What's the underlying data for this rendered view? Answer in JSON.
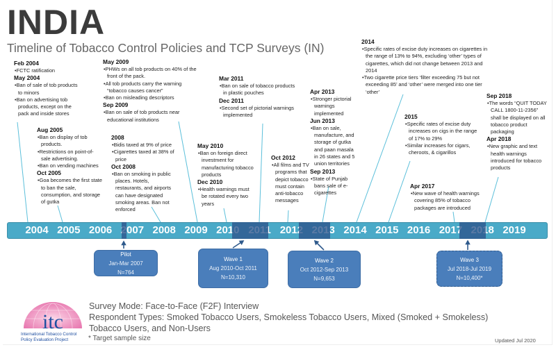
{
  "header": {
    "title": "INDIA",
    "subtitle": "Timeline of Tobacco Control Policies and TCP Surveys (IN)"
  },
  "events": [
    {
      "groups": [
        {
          "date": "Feb 2004",
          "items": [
            "FCTC ratification"
          ]
        },
        {
          "date": "May 2004",
          "items": [
            "Ban of sale of tob products to minors",
            "Ban on advertising tob products, except on the pack and inside stores"
          ]
        }
      ]
    },
    {
      "groups": [
        {
          "date": "Aug 2005",
          "items": [
            "Ban on display of tob products.",
            "Restrictions on point-of-sale advertising.",
            "Ban on vending machines"
          ]
        },
        {
          "date": "Oct 2005",
          "items": [
            "Goa becomes the first state to ban the sale, consumption, and storage of gutka"
          ]
        }
      ]
    },
    {
      "groups": [
        {
          "date": "May 2009",
          "items": [
            "PHWs on all tob products on 40% of the front of the pack.",
            "All tob products carry the warning “tobacco causes cancer”",
            "Ban on misleading descriptors"
          ]
        },
        {
          "date": "Sep 2009",
          "items": [
            "Ban on sale of tob products near educational institutions"
          ]
        }
      ]
    },
    {
      "groups": [
        {
          "date": "2008",
          "items": [
            "Bidis taxed at 9% of price",
            "Cigarettes taxed at 38% of price"
          ]
        },
        {
          "date": "Oct 2008",
          "items": [
            "Ban on smoking in public places. Hotels, restaurants, and airports can have designated smoking areas. Ban not enforced"
          ]
        }
      ]
    },
    {
      "groups": [
        {
          "date": "Mar 2011",
          "items": [
            "Ban on sale of tobacco products  in plastic pouches"
          ]
        },
        {
          "date": "Dec 2011",
          "items": [
            "Second set of pictorial warnings implemented"
          ]
        }
      ]
    },
    {
      "groups": [
        {
          "date": "May 2010",
          "items": [
            "Ban on foreign direct investment for manufacturing tobacco products"
          ]
        },
        {
          "date": "Dec 2010",
          "items": [
            "Health warnings must be rotated every two years"
          ]
        }
      ]
    },
    {
      "groups": [
        {
          "date": "Oct 2012",
          "items": [
            "All films and TV programs that depict tobacco must contain anti-tobacco messages"
          ]
        }
      ]
    },
    {
      "groups": [
        {
          "date": "Apr 2013",
          "items": [
            "Stronger pictorial warnings implemented"
          ]
        },
        {
          "date": "Jun 2013",
          "items": [
            "Ban on sale, manufacture, and storage of gutka and paan masala in 26 states and 5 union territories"
          ]
        },
        {
          "date": "Sep 2013",
          "items": [
            "State of Punjab bans sale of e-cigarettes"
          ]
        }
      ]
    },
    {
      "groups": [
        {
          "date": "2014",
          "items": [
            "Specific rates of excise duty increases on cigarettes in the range of 13% to 94%, excluding ‘other’ types of cigarettes, which did not change between 2013 and 2014",
            "Two cigarette price tiers ‘filter exceeding 75 but not exceeding 85’ and ‘other’ were merged into one tier ‘other’"
          ]
        }
      ]
    },
    {
      "groups": [
        {
          "date": "2015",
          "items": [
            "Specific rates of excise duty increases on cigs in the range of 17% to 29%",
            "Similar increases for cigars, cheroots, & cigarillos"
          ]
        }
      ]
    },
    {
      "groups": [
        {
          "date": "Apr 2017",
          "items": [
            "New wave of health warnings covering 85% of tobacco packages are introduced"
          ]
        }
      ]
    },
    {
      "groups": [
        {
          "date": "Sep 2018",
          "items": [
            "The words “QUIT TODAY CALL 1800-11-2356” shall be displayed on all tobacco product packaging"
          ]
        },
        {
          "date": "Apr 2018",
          "items": [
            "New graphic and text health warnings introduced for tobacco products"
          ]
        }
      ]
    }
  ],
  "timeline": {
    "years": [
      "2004",
      "2005",
      "2006",
      "2007",
      "2008",
      "2009",
      "2010",
      "2011",
      "2012",
      "2013",
      "2014",
      "2015",
      "2016",
      "2017",
      "2018",
      "2019"
    ]
  },
  "surveys": [
    {
      "name": "Pilot",
      "period": "Jan-Mar 2007",
      "n": "N=764",
      "planned": false
    },
    {
      "name": "Wave 1",
      "period": "Aug 2010-Oct 2011",
      "n": "N=10,310",
      "planned": false
    },
    {
      "name": "Wave 2",
      "period": "Oct 2012-Sep 2013",
      "n": "N=9,653",
      "planned": false
    },
    {
      "name": "Wave 3",
      "period": "Jul 2018-Jul 2019",
      "n": "N=10,400*",
      "planned": true
    }
  ],
  "footer": {
    "survey_mode": "Survey Mode: Face-to-Face (F2F) Interview",
    "respondent_types": "Respondent Types: Smoked Tobacco Users, Smokeless Tobacco Users, Mixed (Smoked + Smokeless) Tobacco Users, and Non-Users",
    "note": "* Target sample size",
    "updated": "Updated Jul 2020"
  },
  "logo": {
    "text": "itc",
    "caption1": "International Tobacco Control",
    "caption2": "Policy Evaluation Project"
  },
  "colors": {
    "timeline": "#4aaac8",
    "survey_box": "#4a7ebb",
    "connector": "#5bbfda",
    "logo_pink": "#e879b0",
    "logo_blue": "#1f4fa0"
  }
}
